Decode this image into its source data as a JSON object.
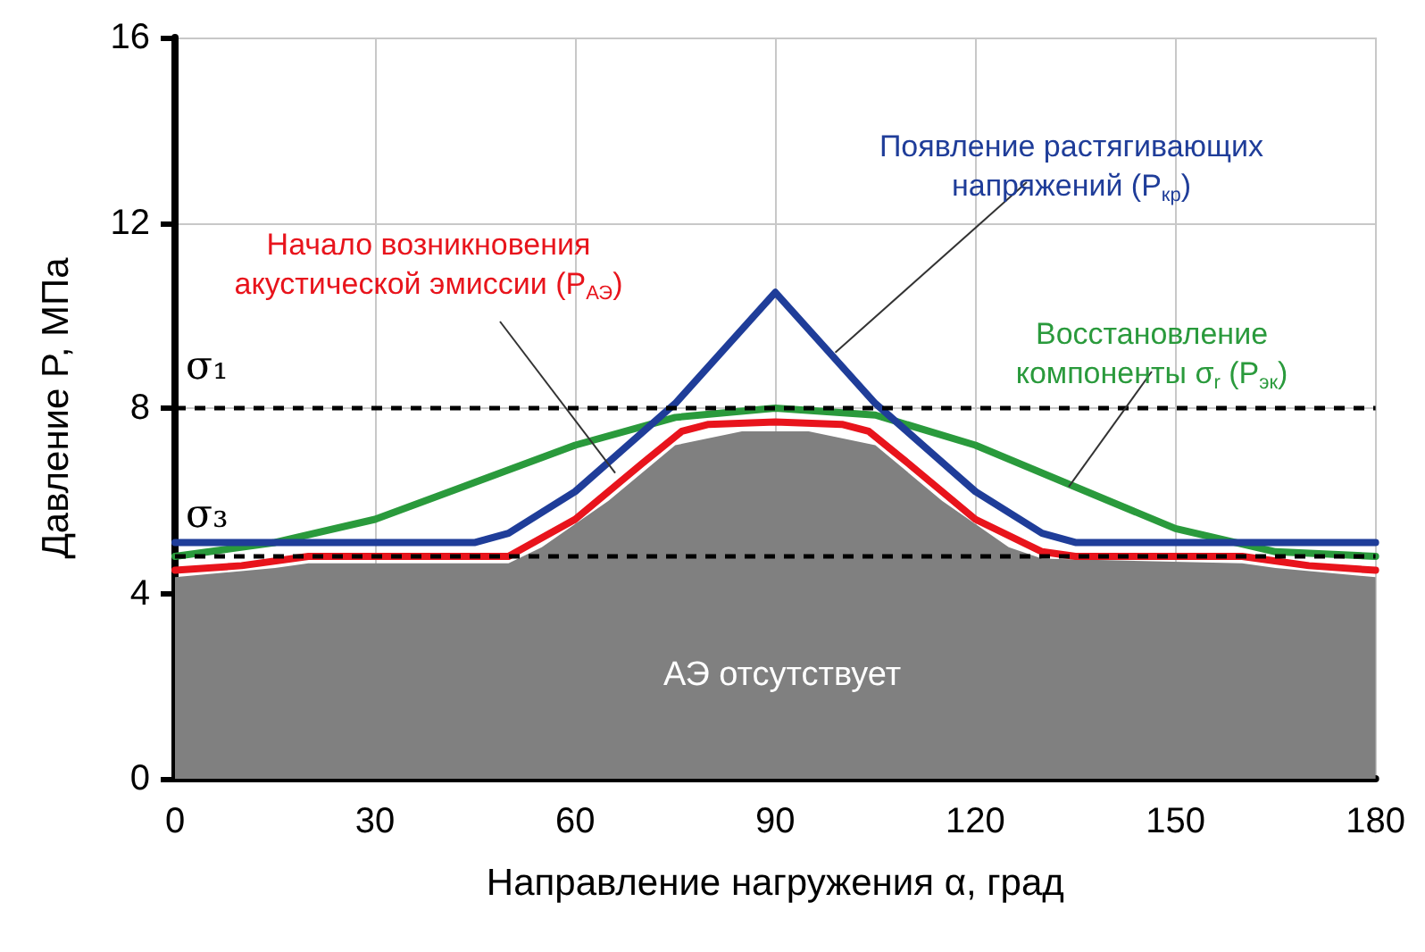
{
  "chart_data": {
    "type": "line",
    "xlabel": "Направление нагружения α, град",
    "ylabel": "Давление P, МПа",
    "xlim": [
      0,
      180
    ],
    "xticks": [
      0,
      30,
      60,
      90,
      120,
      150,
      180
    ],
    "ylim": [
      0,
      16
    ],
    "yticks": [
      0,
      4,
      8,
      12,
      16
    ],
    "grid": true,
    "marker": "none",
    "line_style": "solid",
    "series": [
      {
        "color": "#2a9a3c",
        "x": [
          0,
          15,
          30,
          45,
          60,
          75,
          90,
          105,
          120,
          135,
          150,
          165,
          180
        ],
        "values": [
          4.8,
          5.1,
          5.6,
          6.4,
          7.2,
          7.8,
          8.0,
          7.85,
          7.2,
          6.3,
          5.4,
          4.9,
          4.8
        ]
      },
      {
        "color": "#e8141c",
        "x": [
          0,
          10,
          20,
          50,
          60,
          70,
          76,
          80,
          90,
          100,
          104,
          110,
          120,
          130,
          135,
          160,
          170,
          180
        ],
        "values": [
          4.5,
          4.6,
          4.8,
          4.8,
          5.6,
          6.8,
          7.5,
          7.65,
          7.7,
          7.65,
          7.5,
          6.8,
          5.6,
          4.9,
          4.8,
          4.8,
          4.6,
          4.5
        ]
      },
      {
        "color": "#1f3d99",
        "x": [
          0,
          45,
          50,
          60,
          75,
          90,
          105,
          120,
          130,
          135,
          180
        ],
        "values": [
          5.1,
          5.1,
          5.3,
          6.2,
          8.1,
          10.5,
          8.1,
          6.2,
          5.3,
          5.1,
          5.1
        ]
      },
      {
        "type": "area",
        "color": "#808080",
        "x": [
          0,
          15,
          20,
          50,
          55,
          65,
          75,
          85,
          95,
          105,
          115,
          125,
          130,
          160,
          165,
          180
        ],
        "values": [
          4.35,
          4.55,
          4.65,
          4.65,
          5.0,
          6.0,
          7.2,
          7.5,
          7.5,
          7.2,
          6.0,
          5.0,
          4.75,
          4.65,
          4.55,
          4.35
        ]
      }
    ],
    "ref_lines": [
      {
        "axis": "y",
        "value": 8,
        "label": "σ₁",
        "color": "#000000",
        "line_style": "dashed"
      },
      {
        "axis": "y",
        "value": 4.8,
        "label": "σ₃",
        "color": "#000000",
        "line_style": "dashed"
      }
    ],
    "annotations": [
      {
        "text": "Начало возникновения\nакустической эмиссии (P$_{АЭ}$)",
        "x": 66,
        "y": 6.6
      },
      {
        "text": "Появление растягивающих\nнапряжений (P$_{кр}$)",
        "x": 99,
        "y": 9.2
      },
      {
        "text": "Восстановление\nкомпоненты σ$_{r}$ (P$_{эк}$)",
        "x": 134,
        "y": 6.3
      },
      "АЭ отсутствует"
    ]
  }
}
